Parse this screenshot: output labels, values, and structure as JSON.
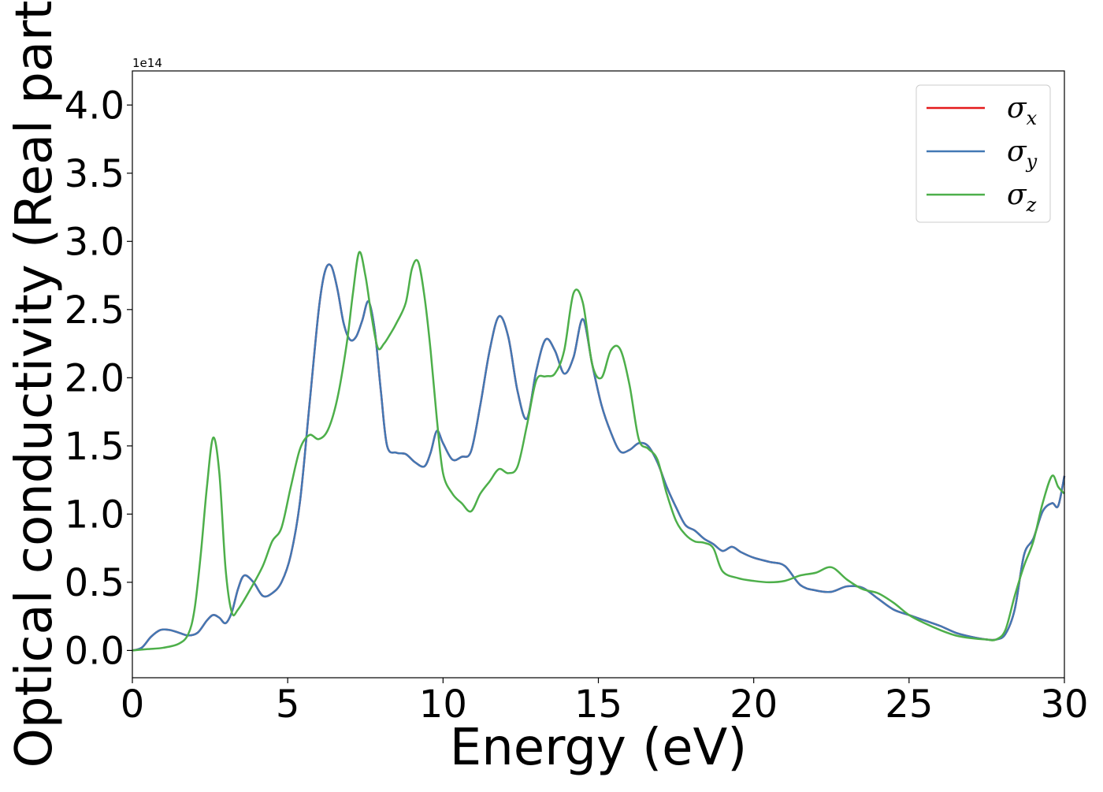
{
  "chart_data": {
    "type": "line",
    "xlabel": "Energy (eV)",
    "ylabel": "Optical conductivity (Real part)",
    "y_offset_text": "1e14",
    "y_scale": 100000000000000.0,
    "xlim": [
      0,
      30
    ],
    "ylim": [
      -0.2,
      4.25
    ],
    "xticks": [
      0,
      5,
      10,
      15,
      20,
      25,
      30
    ],
    "xtick_labels": [
      "0",
      "5",
      "10",
      "15",
      "20",
      "25",
      "30"
    ],
    "yticks": [
      0.0,
      0.5,
      1.0,
      1.5,
      2.0,
      2.5,
      3.0,
      3.5,
      4.0
    ],
    "ytick_labels": [
      "0.0",
      "0.5",
      "1.0",
      "1.5",
      "2.0",
      "2.5",
      "3.0",
      "3.5",
      "4.0"
    ],
    "grid": false,
    "legend_position": "top-right",
    "series": [
      {
        "name": "σx",
        "symbol": "σ",
        "subscript": "x",
        "color": "#e41a1c",
        "x": [
          0,
          0.3,
          0.6,
          0.9,
          1.2,
          1.5,
          1.8,
          2.1,
          2.4,
          2.6,
          2.8,
          3.0,
          3.2,
          3.4,
          3.6,
          3.9,
          4.2,
          4.5,
          4.8,
          5.1,
          5.4,
          5.7,
          6.0,
          6.2,
          6.4,
          6.6,
          6.8,
          7.0,
          7.2,
          7.4,
          7.6,
          7.8,
          8.0,
          8.2,
          8.5,
          8.8,
          9.1,
          9.4,
          9.6,
          9.8,
          10.0,
          10.3,
          10.6,
          10.9,
          11.2,
          11.5,
          11.8,
          12.1,
          12.4,
          12.7,
          13.0,
          13.3,
          13.6,
          13.9,
          14.2,
          14.5,
          14.8,
          15.1,
          15.4,
          15.7,
          16.0,
          16.3,
          16.6,
          16.9,
          17.2,
          17.5,
          17.8,
          18.1,
          18.4,
          18.7,
          19.0,
          19.3,
          19.6,
          20.0,
          20.5,
          21.0,
          21.5,
          22.0,
          22.5,
          23.0,
          23.5,
          24.0,
          24.5,
          25.0,
          25.5,
          26.0,
          26.5,
          27.0,
          27.5,
          27.8,
          28.1,
          28.4,
          28.7,
          29.0,
          29.3,
          29.6,
          29.8,
          30.0
        ],
        "y": [
          0.0,
          0.02,
          0.1,
          0.15,
          0.15,
          0.13,
          0.11,
          0.13,
          0.22,
          0.26,
          0.24,
          0.2,
          0.28,
          0.45,
          0.55,
          0.5,
          0.4,
          0.42,
          0.5,
          0.7,
          1.1,
          1.8,
          2.5,
          2.78,
          2.82,
          2.65,
          2.4,
          2.28,
          2.3,
          2.42,
          2.56,
          2.35,
          1.9,
          1.5,
          1.45,
          1.44,
          1.38,
          1.35,
          1.45,
          1.61,
          1.52,
          1.4,
          1.42,
          1.46,
          1.8,
          2.2,
          2.45,
          2.3,
          1.9,
          1.7,
          2.05,
          2.28,
          2.2,
          2.03,
          2.15,
          2.43,
          2.1,
          1.8,
          1.6,
          1.46,
          1.47,
          1.52,
          1.5,
          1.38,
          1.2,
          1.05,
          0.92,
          0.88,
          0.82,
          0.78,
          0.73,
          0.76,
          0.72,
          0.68,
          0.65,
          0.62,
          0.48,
          0.44,
          0.43,
          0.47,
          0.46,
          0.38,
          0.3,
          0.26,
          0.22,
          0.18,
          0.13,
          0.1,
          0.08,
          0.08,
          0.12,
          0.3,
          0.7,
          0.82,
          1.02,
          1.08,
          1.06,
          1.28
        ]
      },
      {
        "name": "σy",
        "symbol": "σ",
        "subscript": "y",
        "color": "#4278b4",
        "x": [
          0,
          0.3,
          0.6,
          0.9,
          1.2,
          1.5,
          1.8,
          2.1,
          2.4,
          2.6,
          2.8,
          3.0,
          3.2,
          3.4,
          3.6,
          3.9,
          4.2,
          4.5,
          4.8,
          5.1,
          5.4,
          5.7,
          6.0,
          6.2,
          6.4,
          6.6,
          6.8,
          7.0,
          7.2,
          7.4,
          7.6,
          7.8,
          8.0,
          8.2,
          8.5,
          8.8,
          9.1,
          9.4,
          9.6,
          9.8,
          10.0,
          10.3,
          10.6,
          10.9,
          11.2,
          11.5,
          11.8,
          12.1,
          12.4,
          12.7,
          13.0,
          13.3,
          13.6,
          13.9,
          14.2,
          14.5,
          14.8,
          15.1,
          15.4,
          15.7,
          16.0,
          16.3,
          16.6,
          16.9,
          17.2,
          17.5,
          17.8,
          18.1,
          18.4,
          18.7,
          19.0,
          19.3,
          19.6,
          20.0,
          20.5,
          21.0,
          21.5,
          22.0,
          22.5,
          23.0,
          23.5,
          24.0,
          24.5,
          25.0,
          25.5,
          26.0,
          26.5,
          27.0,
          27.5,
          27.8,
          28.1,
          28.4,
          28.7,
          29.0,
          29.3,
          29.6,
          29.8,
          30.0
        ],
        "y": [
          0.0,
          0.02,
          0.1,
          0.15,
          0.15,
          0.13,
          0.11,
          0.13,
          0.22,
          0.26,
          0.24,
          0.2,
          0.28,
          0.45,
          0.55,
          0.5,
          0.4,
          0.42,
          0.5,
          0.7,
          1.1,
          1.8,
          2.5,
          2.78,
          2.82,
          2.65,
          2.4,
          2.28,
          2.3,
          2.42,
          2.56,
          2.35,
          1.9,
          1.5,
          1.45,
          1.44,
          1.38,
          1.35,
          1.45,
          1.61,
          1.52,
          1.4,
          1.42,
          1.46,
          1.8,
          2.2,
          2.45,
          2.3,
          1.9,
          1.7,
          2.05,
          2.28,
          2.2,
          2.03,
          2.15,
          2.43,
          2.1,
          1.8,
          1.6,
          1.46,
          1.47,
          1.52,
          1.5,
          1.38,
          1.2,
          1.05,
          0.92,
          0.88,
          0.82,
          0.78,
          0.73,
          0.76,
          0.72,
          0.68,
          0.65,
          0.62,
          0.48,
          0.44,
          0.43,
          0.47,
          0.46,
          0.38,
          0.3,
          0.26,
          0.22,
          0.18,
          0.13,
          0.1,
          0.08,
          0.08,
          0.12,
          0.3,
          0.7,
          0.82,
          1.02,
          1.08,
          1.06,
          1.28
        ]
      },
      {
        "name": "σz",
        "symbol": "σ",
        "subscript": "z",
        "color": "#4daf4a",
        "x": [
          0,
          0.5,
          1.0,
          1.5,
          1.8,
          2.0,
          2.2,
          2.4,
          2.6,
          2.8,
          3.0,
          3.2,
          3.4,
          3.8,
          4.2,
          4.5,
          4.8,
          5.1,
          5.4,
          5.7,
          6.0,
          6.3,
          6.6,
          6.9,
          7.1,
          7.3,
          7.5,
          7.7,
          7.9,
          8.1,
          8.3,
          8.5,
          8.8,
          9.0,
          9.2,
          9.4,
          9.6,
          9.8,
          10.0,
          10.3,
          10.6,
          10.9,
          11.2,
          11.5,
          11.8,
          12.1,
          12.4,
          12.7,
          13.0,
          13.3,
          13.6,
          13.9,
          14.2,
          14.5,
          14.8,
          15.1,
          15.4,
          15.7,
          16.0,
          16.3,
          16.6,
          16.9,
          17.2,
          17.5,
          17.8,
          18.1,
          18.4,
          18.7,
          19.0,
          19.5,
          20.0,
          20.5,
          21.0,
          21.5,
          22.0,
          22.5,
          23.0,
          23.5,
          24.0,
          24.5,
          25.0,
          25.5,
          26.0,
          26.5,
          27.0,
          27.5,
          27.8,
          28.1,
          28.4,
          28.7,
          29.0,
          29.3,
          29.6,
          29.8,
          30.0
        ],
        "y": [
          0.0,
          0.01,
          0.02,
          0.05,
          0.12,
          0.3,
          0.7,
          1.2,
          1.56,
          1.3,
          0.6,
          0.28,
          0.3,
          0.45,
          0.62,
          0.8,
          0.9,
          1.2,
          1.48,
          1.58,
          1.55,
          1.62,
          1.85,
          2.25,
          2.62,
          2.92,
          2.75,
          2.45,
          2.22,
          2.25,
          2.32,
          2.4,
          2.55,
          2.8,
          2.85,
          2.6,
          2.2,
          1.7,
          1.3,
          1.15,
          1.08,
          1.02,
          1.15,
          1.24,
          1.33,
          1.3,
          1.35,
          1.65,
          1.98,
          2.01,
          2.03,
          2.2,
          2.62,
          2.55,
          2.1,
          2.0,
          2.2,
          2.21,
          1.95,
          1.55,
          1.48,
          1.4,
          1.15,
          0.95,
          0.85,
          0.8,
          0.79,
          0.75,
          0.58,
          0.53,
          0.51,
          0.5,
          0.51,
          0.55,
          0.57,
          0.61,
          0.52,
          0.45,
          0.42,
          0.35,
          0.26,
          0.2,
          0.15,
          0.11,
          0.09,
          0.08,
          0.08,
          0.15,
          0.4,
          0.62,
          0.8,
          1.08,
          1.28,
          1.2,
          1.15
        ]
      }
    ]
  }
}
